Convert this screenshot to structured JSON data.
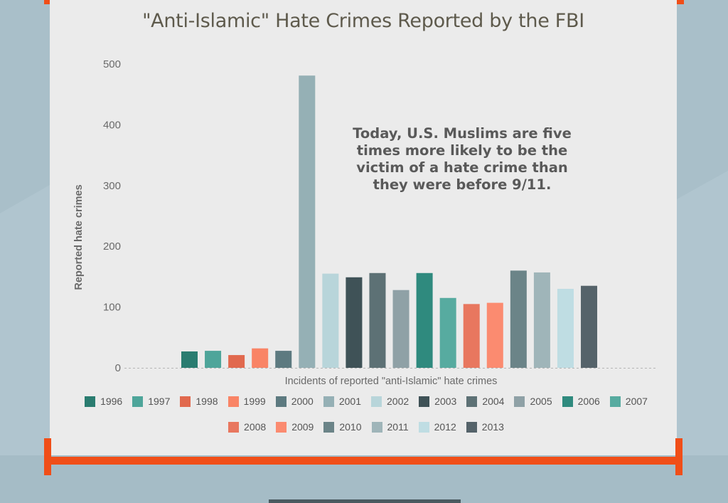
{
  "chart_data": {
    "type": "bar",
    "title": "\"Anti-Islamic\" Hate Crimes Reported by the FBI",
    "xlabel": "Incidents of reported \"anti-Islamic\" hate crimes",
    "ylabel": "Reported hate crimes",
    "ylim": [
      0,
      500
    ],
    "yticks": [
      0,
      100,
      200,
      300,
      400,
      500
    ],
    "annotation": "Today, U.S. Muslims are five times more likely to be the victim of a hate crime than they were before 9/11.",
    "grid": false,
    "legend_position": "bottom",
    "categories": [
      "1996",
      "1997",
      "1998",
      "1999",
      "2000",
      "2001",
      "2002",
      "2003",
      "2004",
      "2005",
      "2006",
      "2007",
      "2008",
      "2009",
      "2010",
      "2011",
      "2012",
      "2013"
    ],
    "values": [
      27,
      28,
      21,
      32,
      28,
      481,
      155,
      149,
      156,
      128,
      156,
      115,
      105,
      107,
      160,
      157,
      130,
      135
    ],
    "colors": [
      "#2a7c70",
      "#4ea59a",
      "#e1694e",
      "#f98466",
      "#5d7a80",
      "#95b0b5",
      "#b8d5da",
      "#3f5257",
      "#5d7175",
      "#8fa1a6",
      "#2f8a7e",
      "#57aba0",
      "#e8775f",
      "#fb8b70",
      "#6b8488",
      "#9fb5b9",
      "#bfdde3",
      "#55636a"
    ]
  }
}
